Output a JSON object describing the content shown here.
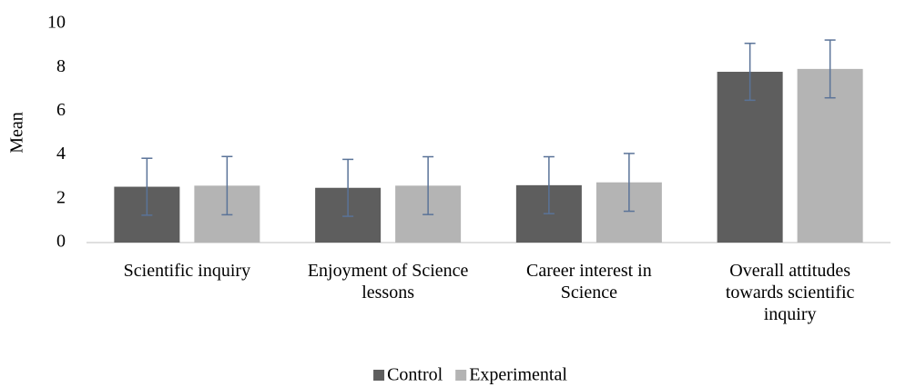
{
  "chart_data": {
    "type": "bar",
    "categories": [
      "Scientific inquiry",
      "Enjoyment of Science lessons",
      "Career interest in Science",
      "Overall attitudes towards scientific inquiry"
    ],
    "series": [
      {
        "name": "Control",
        "color": "#5e5e5e",
        "values": [
          2.55,
          2.5,
          2.62,
          7.8
        ],
        "errors": [
          1.3,
          1.3,
          1.3,
          1.3
        ]
      },
      {
        "name": "Experimental",
        "color": "#b4b4b4",
        "values": [
          2.6,
          2.6,
          2.75,
          7.93
        ],
        "errors": [
          1.33,
          1.32,
          1.32,
          1.32
        ]
      }
    ],
    "error_color": "#5a7398",
    "y_label": "Mean",
    "ylim": [
      0,
      10
    ],
    "yticks": [
      0,
      2,
      4,
      6,
      8,
      10
    ],
    "legend": "bottom"
  }
}
